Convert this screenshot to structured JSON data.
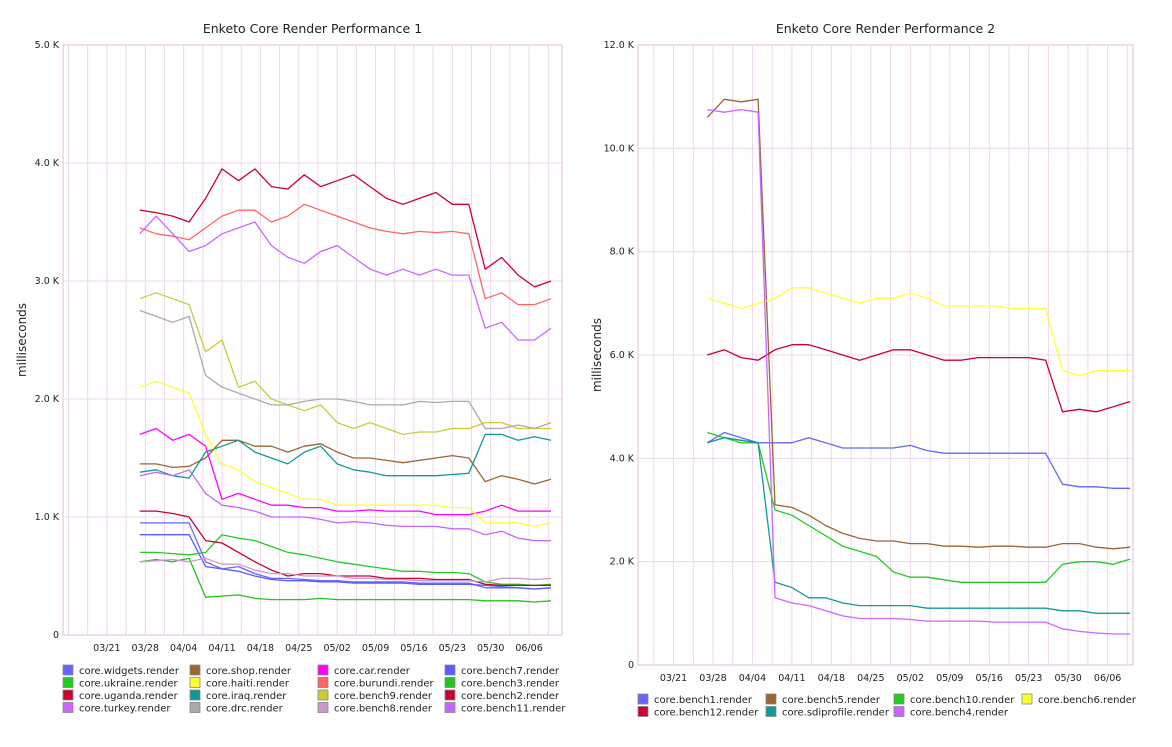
{
  "chart_data": [
    {
      "type": "line",
      "title": "Enketo Core Render Performance 1",
      "xlabel": "",
      "ylabel": "milliseconds",
      "ylim": [
        0,
        5000
      ],
      "yticks": [
        0,
        1000,
        2000,
        3000,
        4000,
        5000
      ],
      "ytick_labels": [
        "0",
        "1.0 K",
        "2.0 K",
        "3.0 K",
        "4.0 K",
        "5.0 K"
      ],
      "xlim_days_from_0321": [
        -8,
        83
      ],
      "xtick_labels": [
        "03/21",
        "03/28",
        "04/04",
        "04/11",
        "04/18",
        "04/25",
        "05/02",
        "05/09",
        "05/16",
        "05/23",
        "05/30",
        "06/06"
      ],
      "x_days_from_0321": [
        6,
        9,
        12,
        15,
        18,
        21,
        24,
        27,
        30,
        33,
        36,
        39,
        42,
        45,
        48,
        51,
        54,
        57,
        60,
        63,
        66,
        69,
        72,
        75,
        78,
        81
      ],
      "legend_position": "bottom",
      "grid": true,
      "series": [
        {
          "name": "core.widgets.render",
          "color": "#6666ff",
          "values": [
            950,
            950,
            950,
            950,
            620,
            560,
            580,
            520,
            480,
            480,
            470,
            460,
            460,
            450,
            450,
            450,
            450,
            440,
            440,
            440,
            440,
            400,
            400,
            400,
            390,
            400
          ]
        },
        {
          "name": "core.shop.render",
          "color": "#996633",
          "values": [
            1450,
            1450,
            1420,
            1430,
            1500,
            1650,
            1650,
            1600,
            1600,
            1550,
            1600,
            1620,
            1550,
            1500,
            1500,
            1480,
            1460,
            1480,
            1500,
            1520,
            1500,
            1300,
            1350,
            1320,
            1280,
            1320
          ]
        },
        {
          "name": "core.car.render",
          "color": "#ff00ff",
          "values": [
            1700,
            1750,
            1650,
            1700,
            1600,
            1150,
            1200,
            1150,
            1100,
            1100,
            1080,
            1080,
            1050,
            1050,
            1060,
            1050,
            1050,
            1050,
            1020,
            1020,
            1020,
            1050,
            1100,
            1050,
            1050,
            1050
          ]
        },
        {
          "name": "core.bench7.render",
          "color": "#5a5aff",
          "values": [
            850,
            850,
            850,
            850,
            580,
            560,
            540,
            500,
            470,
            460,
            460,
            450,
            450,
            440,
            440,
            440,
            440,
            430,
            430,
            430,
            430,
            420,
            410,
            400,
            390,
            400
          ]
        },
        {
          "name": "core.ukraine.render",
          "color": "#22cc22",
          "values": [
            700,
            700,
            690,
            680,
            700,
            850,
            820,
            800,
            750,
            700,
            680,
            650,
            620,
            600,
            580,
            560,
            540,
            540,
            530,
            530,
            520,
            450,
            430,
            430,
            420,
            430
          ]
        },
        {
          "name": "core.haiti.render",
          "color": "#ffff33",
          "values": [
            2100,
            2150,
            2100,
            2050,
            1700,
            1450,
            1400,
            1300,
            1250,
            1200,
            1150,
            1150,
            1100,
            1100,
            1100,
            1100,
            1100,
            1100,
            1100,
            1080,
            1080,
            950,
            950,
            950,
            920,
            950
          ]
        },
        {
          "name": "core.burundi.render",
          "color": "#ff6666",
          "values": [
            3450,
            3400,
            3380,
            3350,
            3450,
            3550,
            3600,
            3600,
            3500,
            3550,
            3650,
            3600,
            3550,
            3500,
            3450,
            3420,
            3400,
            3420,
            3410,
            3420,
            3400,
            2850,
            2900,
            2800,
            2800,
            2850
          ]
        },
        {
          "name": "core.bench3.render",
          "color": "#1fc41f",
          "values": [
            620,
            640,
            620,
            650,
            320,
            330,
            340,
            310,
            300,
            300,
            300,
            310,
            300,
            300,
            300,
            300,
            300,
            300,
            300,
            300,
            300,
            290,
            290,
            290,
            280,
            290
          ]
        },
        {
          "name": "core.uganda.render",
          "color": "#cc0033",
          "values": [
            3600,
            3580,
            3550,
            3500,
            3700,
            3950,
            3850,
            3950,
            3800,
            3780,
            3900,
            3800,
            3850,
            3900,
            3800,
            3700,
            3650,
            3700,
            3750,
            3650,
            3650,
            3100,
            3200,
            3050,
            2950,
            3000
          ]
        },
        {
          "name": "core.iraq.render",
          "color": "#119999",
          "values": [
            1380,
            1400,
            1350,
            1330,
            1550,
            1600,
            1650,
            1550,
            1500,
            1450,
            1550,
            1600,
            1450,
            1400,
            1380,
            1350,
            1350,
            1350,
            1350,
            1360,
            1370,
            1700,
            1700,
            1650,
            1680,
            1650
          ]
        },
        {
          "name": "core.bench9.render",
          "color": "#cccc33",
          "values": [
            2850,
            2900,
            2850,
            2800,
            2400,
            2500,
            2100,
            2150,
            2000,
            1950,
            1900,
            1950,
            1800,
            1750,
            1800,
            1750,
            1700,
            1720,
            1720,
            1750,
            1750,
            1800,
            1800,
            1750,
            1750,
            1750
          ]
        },
        {
          "name": "core.bench2.render",
          "color": "#c8002e",
          "values": [
            1050,
            1050,
            1030,
            1000,
            800,
            780,
            700,
            620,
            550,
            500,
            520,
            520,
            500,
            500,
            500,
            480,
            480,
            480,
            470,
            470,
            470,
            430,
            420,
            420,
            420,
            420
          ]
        },
        {
          "name": "core.turkey.render",
          "color": "#cc66ff",
          "values": [
            3400,
            3550,
            3400,
            3250,
            3300,
            3400,
            3450,
            3500,
            3300,
            3200,
            3150,
            3250,
            3300,
            3200,
            3100,
            3050,
            3100,
            3050,
            3100,
            3050,
            3050,
            2600,
            2650,
            2500,
            2500,
            2600
          ]
        },
        {
          "name": "core.drc.render",
          "color": "#aaaaaa",
          "values": [
            2750,
            2700,
            2650,
            2700,
            2200,
            2100,
            2050,
            2000,
            1950,
            1950,
            1980,
            2000,
            2000,
            1980,
            1950,
            1950,
            1950,
            1980,
            1970,
            1980,
            1980,
            1750,
            1750,
            1780,
            1750,
            1800
          ]
        },
        {
          "name": "core.bench8.render",
          "color": "#cc99cc",
          "values": [
            620,
            630,
            640,
            620,
            650,
            600,
            600,
            550,
            520,
            520,
            500,
            500,
            500,
            480,
            480,
            470,
            470,
            460,
            460,
            460,
            460,
            450,
            480,
            480,
            470,
            480
          ]
        },
        {
          "name": "core.bench11.render",
          "color": "#c466ff",
          "values": [
            1350,
            1380,
            1350,
            1400,
            1200,
            1100,
            1080,
            1050,
            1000,
            1000,
            1000,
            980,
            950,
            960,
            950,
            930,
            920,
            920,
            920,
            900,
            900,
            850,
            880,
            820,
            800,
            800
          ]
        }
      ]
    },
    {
      "type": "line",
      "title": "Enketo Core Render Performance 2",
      "xlabel": "",
      "ylabel": "milliseconds",
      "ylim": [
        0,
        12000
      ],
      "yticks": [
        0,
        2000,
        4000,
        6000,
        8000,
        10000,
        12000
      ],
      "ytick_labels": [
        "0",
        "2.0 K",
        "4.0 K",
        "6.0 K",
        "8.0 K",
        "10.0 K",
        "12.0 K"
      ],
      "xlim_days_from_0321": [
        -6.3,
        81.5
      ],
      "xtick_labels": [
        "03/21",
        "03/28",
        "04/04",
        "04/11",
        "04/18",
        "04/25",
        "05/02",
        "05/09",
        "05/16",
        "05/23",
        "05/30",
        "06/06"
      ],
      "x_days_from_0321": [
        6,
        9,
        12,
        15,
        18,
        21,
        24,
        27,
        30,
        33,
        36,
        39,
        42,
        45,
        48,
        51,
        54,
        57,
        60,
        63,
        66,
        69,
        72,
        75,
        78,
        81
      ],
      "legend_position": "bottom",
      "grid": true,
      "series": [
        {
          "name": "core.bench1.render",
          "color": "#6666ff",
          "values": [
            4300,
            4500,
            4400,
            4300,
            4300,
            4300,
            4400,
            4300,
            4200,
            4200,
            4200,
            4200,
            4250,
            4150,
            4100,
            4100,
            4100,
            4100,
            4100,
            4100,
            4100,
            3500,
            3450,
            3450,
            3420,
            3420
          ]
        },
        {
          "name": "core.bench5.render",
          "color": "#996633",
          "values": [
            10600,
            10950,
            10900,
            10950,
            3100,
            3050,
            2900,
            2700,
            2550,
            2450,
            2400,
            2400,
            2350,
            2350,
            2300,
            2300,
            2280,
            2300,
            2300,
            2280,
            2280,
            2350,
            2350,
            2280,
            2250,
            2280
          ]
        },
        {
          "name": "core.bench10.render",
          "color": "#22cc22",
          "values": [
            4500,
            4400,
            4300,
            4300,
            3000,
            2900,
            2700,
            2500,
            2300,
            2200,
            2100,
            1800,
            1700,
            1700,
            1650,
            1600,
            1600,
            1600,
            1600,
            1600,
            1600,
            1950,
            2000,
            2000,
            1950,
            2050
          ]
        },
        {
          "name": "core.bench6.render",
          "color": "#ffff33",
          "values": [
            7100,
            7000,
            6900,
            7000,
            7100,
            7300,
            7300,
            7200,
            7100,
            7000,
            7100,
            7100,
            7200,
            7100,
            6950,
            6950,
            6950,
            6950,
            6900,
            6900,
            6900,
            5700,
            5600,
            5700,
            5700,
            5700
          ]
        },
        {
          "name": "core.bench12.render",
          "color": "#cc0033",
          "values": [
            6000,
            6100,
            5950,
            5900,
            6100,
            6200,
            6200,
            6100,
            6000,
            5900,
            6000,
            6100,
            6100,
            6000,
            5900,
            5900,
            5950,
            5950,
            5950,
            5950,
            5900,
            4900,
            4950,
            4900,
            5000,
            5100
          ]
        },
        {
          "name": "core.sdiprofile.render",
          "color": "#119999",
          "values": [
            4300,
            4400,
            4350,
            4300,
            1600,
            1500,
            1300,
            1300,
            1200,
            1150,
            1150,
            1150,
            1150,
            1100,
            1100,
            1100,
            1100,
            1100,
            1100,
            1100,
            1100,
            1050,
            1050,
            1000,
            1000,
            1000
          ]
        },
        {
          "name": "core.bench4.render",
          "color": "#cc66ff",
          "values": [
            10750,
            10700,
            10750,
            10700,
            1300,
            1200,
            1150,
            1050,
            950,
            900,
            900,
            900,
            880,
            850,
            850,
            850,
            850,
            830,
            830,
            830,
            830,
            700,
            650,
            620,
            600,
            600
          ]
        }
      ]
    }
  ]
}
